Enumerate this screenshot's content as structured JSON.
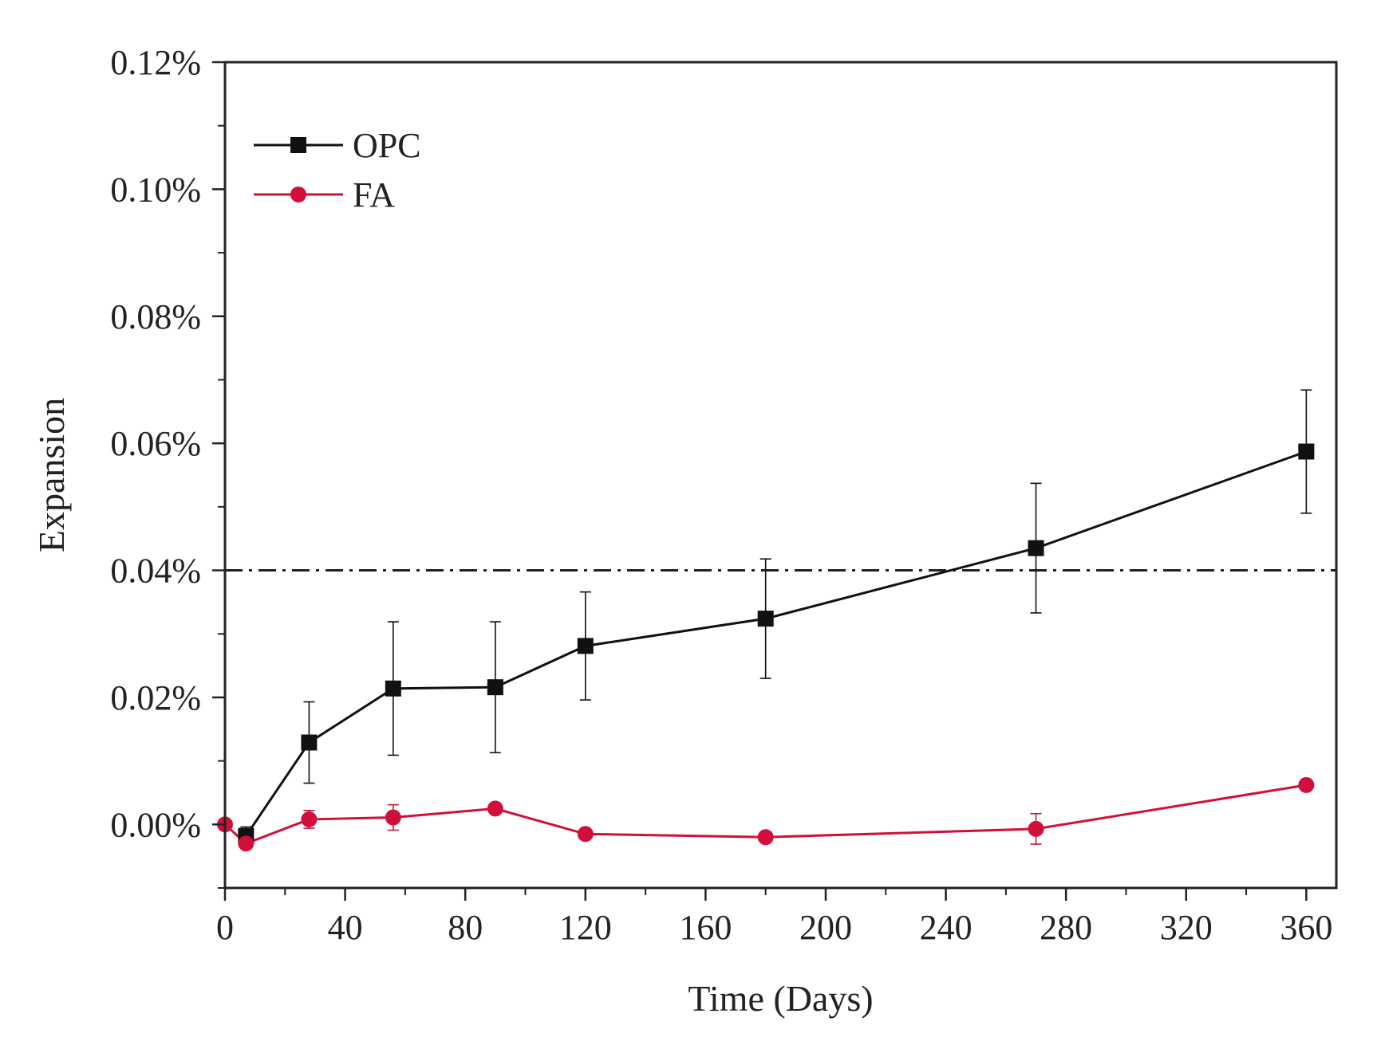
{
  "chart_data": {
    "type": "line",
    "title": "",
    "xlabel": "Time (Days)",
    "ylabel": "Expansion",
    "xlim": [
      0,
      370
    ],
    "ylim": [
      -0.01,
      0.12
    ],
    "x_ticks": [
      0,
      40,
      80,
      120,
      160,
      200,
      240,
      280,
      320,
      360
    ],
    "x_tick_labels": [
      "0",
      "40",
      "80",
      "120",
      "160",
      "200",
      "240",
      "280",
      "320",
      "360"
    ],
    "y_ticks": [
      0.0,
      0.02,
      0.04,
      0.06,
      0.08,
      0.1,
      0.12
    ],
    "y_tick_labels": [
      "0.00%",
      "0.02%",
      "0.04%",
      "0.06%",
      "0.08%",
      "0.10%",
      "0.12%"
    ],
    "y_unit": "%",
    "grid": false,
    "legend_position": "top-left",
    "reference_line": {
      "y": 0.04,
      "style": "dash-dot"
    },
    "series": [
      {
        "name": "OPC",
        "marker": "square",
        "color": "#111111",
        "x": [
          7,
          28,
          56,
          90,
          120,
          180,
          270,
          360
        ],
        "y": [
          -0.0018,
          0.0129,
          0.0214,
          0.0216,
          0.0281,
          0.0324,
          0.0435,
          0.0587
        ],
        "err": [
          0.0014,
          0.0064,
          0.0105,
          0.0103,
          0.0085,
          0.0094,
          0.0102,
          0.0097
        ]
      },
      {
        "name": "FA",
        "marker": "circle",
        "color": "#d0103a",
        "x": [
          0,
          7,
          28,
          56,
          90,
          120,
          180,
          270,
          360
        ],
        "y": [
          0.0,
          -0.003,
          0.0008,
          0.0011,
          0.0025,
          -0.0015,
          -0.002,
          -0.0007,
          0.0062
        ],
        "err": [
          0,
          0.0008,
          0.0014,
          0.002,
          0.0005,
          0.0005,
          0.0005,
          0.0024,
          0.0005
        ]
      }
    ]
  }
}
